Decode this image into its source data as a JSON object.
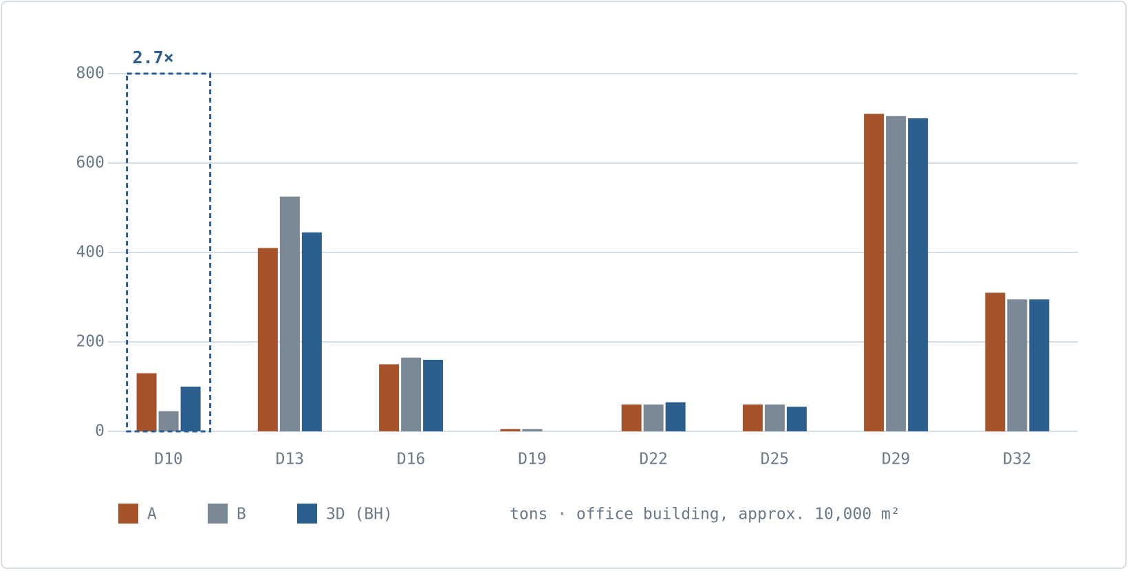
{
  "chart_data": {
    "type": "bar",
    "categories": [
      "D10",
      "D13",
      "D16",
      "D19",
      "D22",
      "D25",
      "D29",
      "D32"
    ],
    "series": [
      {
        "name": "A",
        "color": "#a6532b",
        "values": [
          130,
          410,
          150,
          5,
          60,
          60,
          710,
          310
        ]
      },
      {
        "name": "B",
        "color": "#7b8896",
        "values": [
          45,
          525,
          165,
          5,
          60,
          60,
          705,
          295
        ]
      },
      {
        "name": "3D (BH)",
        "color": "#2c5f8e",
        "values": [
          100,
          445,
          160,
          0,
          65,
          55,
          700,
          295
        ]
      }
    ],
    "ylim": [
      0,
      800
    ],
    "yticks": [
      0,
      200,
      400,
      600,
      800
    ],
    "grid": true,
    "annotation": {
      "text": "2.7×",
      "category": "D10",
      "color": "#2c5f8e"
    },
    "note": "tons · office building, approx. 10,000 m²"
  }
}
